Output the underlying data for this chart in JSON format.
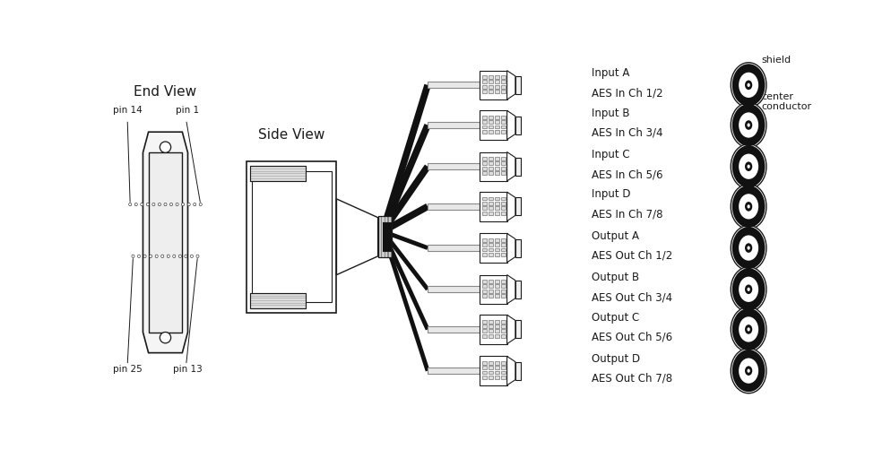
{
  "bg_color": "#ffffff",
  "lc": "#1a1a1a",
  "labels": [
    [
      "Input A",
      "AES In Ch 1/2"
    ],
    [
      "Input B",
      "AES In Ch 3/4"
    ],
    [
      "Input C",
      "AES In Ch 5/6"
    ],
    [
      "Input D",
      "AES In Ch 7/8"
    ],
    [
      "Output A",
      "AES Out Ch 1/2"
    ],
    [
      "Output B",
      "AES Out Ch 3/4"
    ],
    [
      "Output C",
      "AES Out Ch 5/6"
    ],
    [
      "Output D",
      "AES Out Ch 7/8"
    ]
  ]
}
